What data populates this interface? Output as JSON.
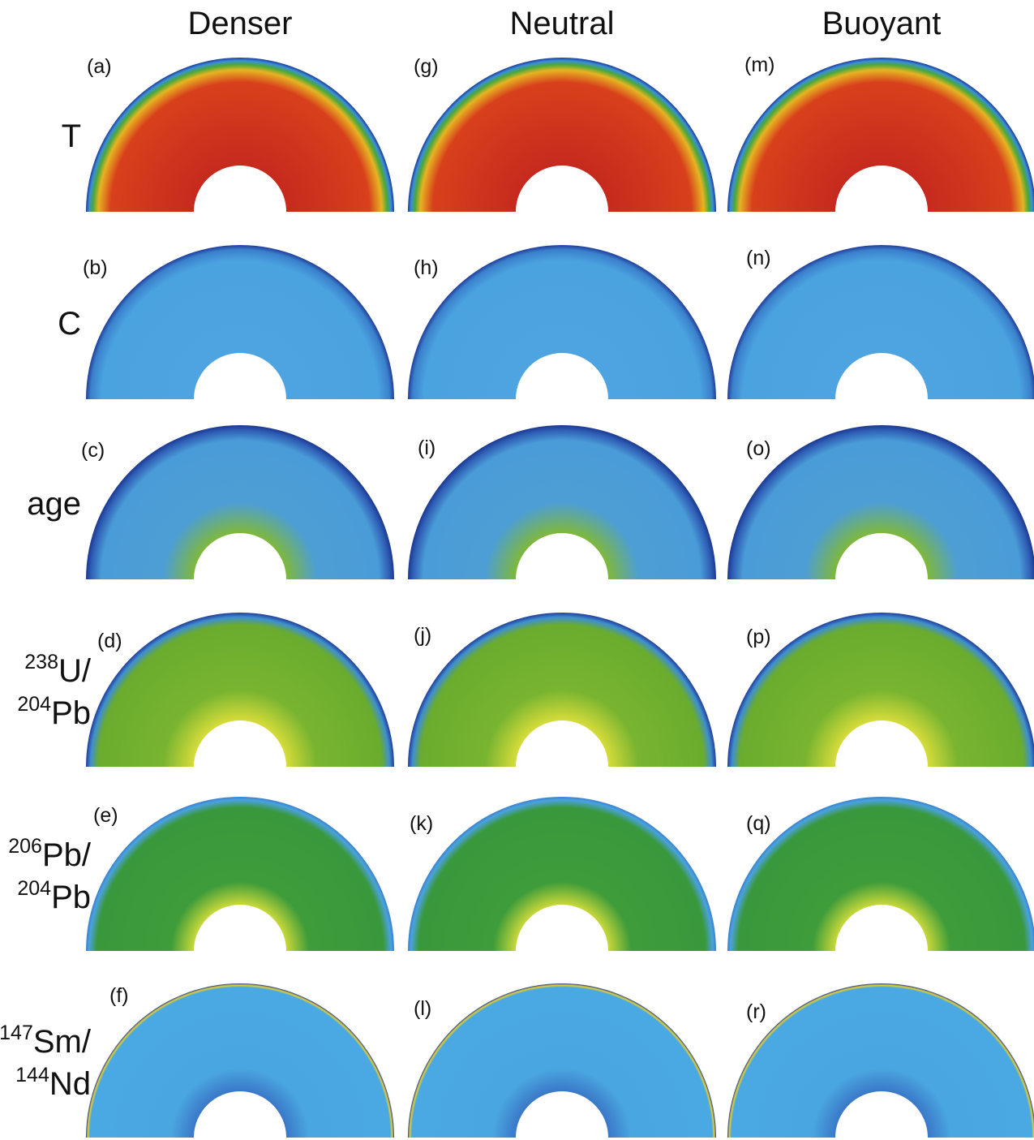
{
  "columns": [
    "Denser",
    "Neutral",
    "Buoyant"
  ],
  "rows": [
    [
      {
        "text": "T"
      }
    ],
    [
      {
        "text": "C"
      }
    ],
    [
      {
        "text": "age"
      }
    ],
    [
      {
        "sup": "238",
        "text": "U/"
      },
      {
        "sup": "204",
        "text": "Pb"
      }
    ],
    [
      {
        "sup": "206",
        "text": "Pb/"
      },
      {
        "sup": "204",
        "text": "Pb"
      }
    ],
    [
      {
        "sup": "147",
        "text": "Sm/"
      },
      {
        "sup": "144",
        "text": "Nd"
      }
    ]
  ],
  "panels": [
    [
      "(a)",
      "(b)",
      "(c)",
      "(d)",
      "(e)",
      "(f)"
    ],
    [
      "(g)",
      "(h)",
      "(i)",
      "(j)",
      "(k)",
      "(l)"
    ],
    [
      "(m)",
      "(n)",
      "(o)",
      "(p)",
      "(q)",
      "(r)"
    ]
  ]
}
